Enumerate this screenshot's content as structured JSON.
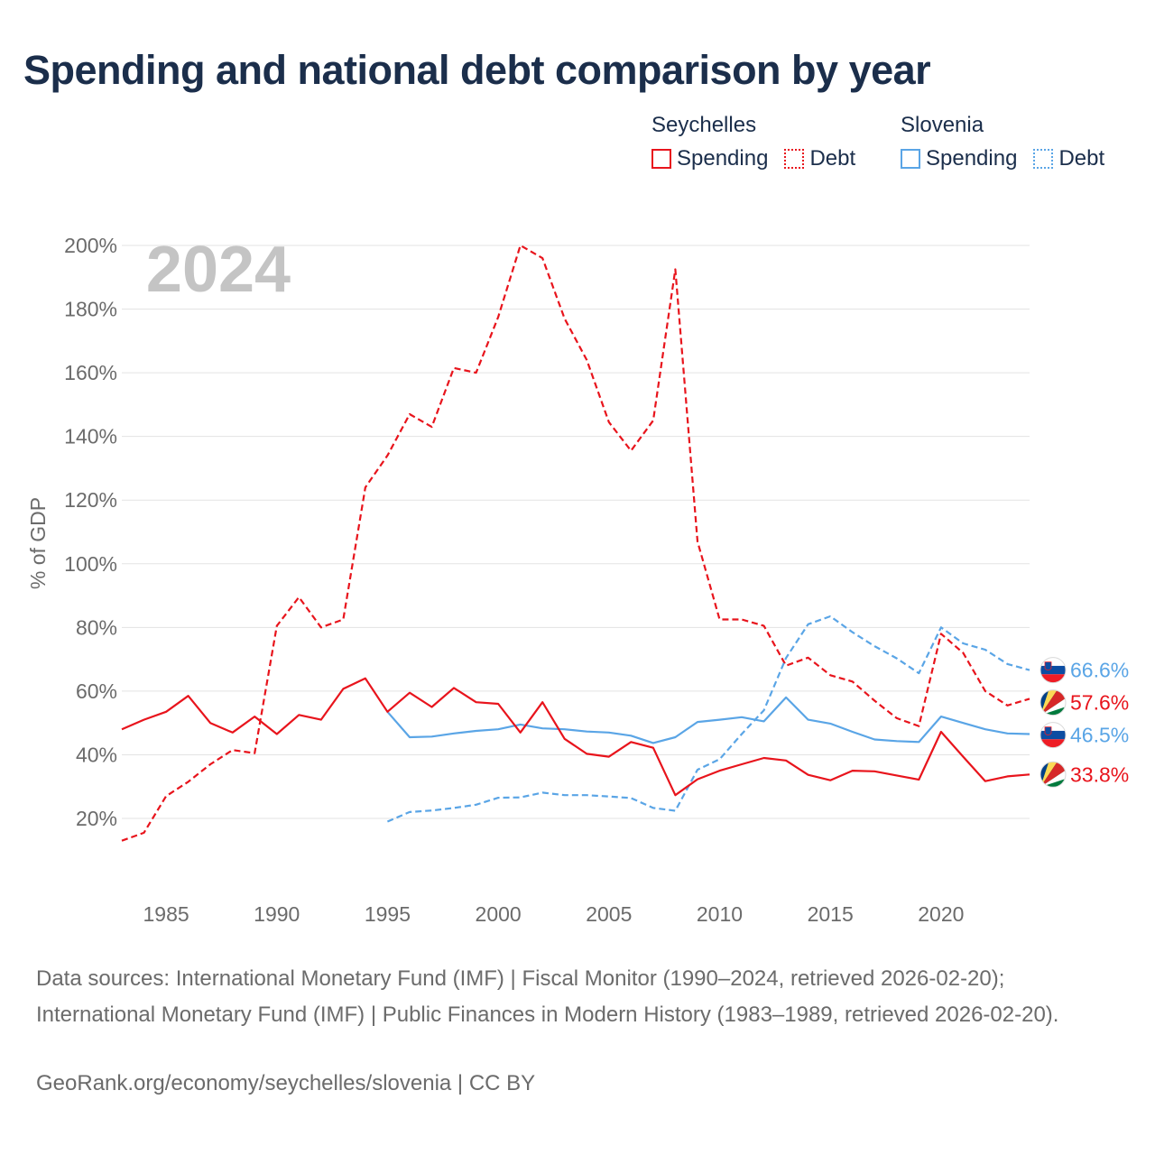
{
  "title": "Spending and national debt comparison by year",
  "legend": {
    "groups": [
      {
        "country": "Seychelles",
        "color": "#e8141c",
        "items": [
          {
            "label": "Spending",
            "style": "solid"
          },
          {
            "label": "Debt",
            "style": "dotted"
          }
        ]
      },
      {
        "country": "Slovenia",
        "color": "#5aa5e6",
        "items": [
          {
            "label": "Spending",
            "style": "solid"
          },
          {
            "label": "Debt",
            "style": "dotted"
          }
        ]
      }
    ]
  },
  "year_watermark": "2024",
  "chart_data": {
    "type": "line",
    "title": "Spending and national debt comparison by year",
    "xlabel": "",
    "ylabel": "% of GDP",
    "xlim": [
      1983,
      2024
    ],
    "ylim": [
      0,
      205
    ],
    "x_ticks": [
      1985,
      1990,
      1995,
      2000,
      2005,
      2010,
      2015,
      2020
    ],
    "y_ticks": [
      20,
      40,
      60,
      80,
      100,
      120,
      140,
      160,
      180,
      200
    ],
    "y_tick_labels": [
      "20%",
      "40%",
      "60%",
      "80%",
      "100%",
      "120%",
      "140%",
      "160%",
      "180%",
      "200%"
    ],
    "grid": true,
    "series": [
      {
        "name": "Seychelles Debt",
        "country": "Seychelles",
        "metric": "Debt",
        "color": "#e8141c",
        "dash": true,
        "x": [
          1983,
          1984,
          1985,
          1986,
          1987,
          1988,
          1989,
          1990,
          1991,
          1992,
          1993,
          1994,
          1995,
          1996,
          1997,
          1998,
          1999,
          2000,
          2001,
          2002,
          2003,
          2004,
          2005,
          2006,
          2007,
          2008,
          2009,
          2010,
          2011,
          2012,
          2013,
          2014,
          2015,
          2016,
          2017,
          2018,
          2019,
          2020,
          2021,
          2022,
          2023,
          2024
        ],
        "values": [
          13,
          15.5,
          27,
          31.5,
          37,
          41.5,
          40.5,
          80.5,
          89.5,
          80,
          82.5,
          124,
          134,
          147,
          143,
          161.5,
          160,
          177.5,
          200,
          196,
          177,
          164,
          144.5,
          135.5,
          145,
          192.5,
          107,
          82.5,
          82.5,
          80.5,
          68,
          70.5,
          65,
          63,
          57,
          51.5,
          49,
          78,
          72,
          60,
          55.5,
          57.6
        ],
        "end_label": "57.6%"
      },
      {
        "name": "Slovenia Debt",
        "country": "Slovenia",
        "metric": "Debt",
        "color": "#5aa5e6",
        "dash": true,
        "x": [
          1995,
          1996,
          1997,
          1998,
          1999,
          2000,
          2001,
          2002,
          2003,
          2004,
          2005,
          2006,
          2007,
          2008,
          2009,
          2010,
          2011,
          2012,
          2013,
          2014,
          2015,
          2016,
          2017,
          2018,
          2019,
          2020,
          2021,
          2022,
          2023,
          2024
        ],
        "values": [
          19,
          22,
          22.5,
          23.3,
          24.3,
          26.5,
          26.6,
          28.1,
          27.3,
          27.3,
          26.9,
          26.4,
          23.3,
          22.4,
          35.3,
          38.6,
          46.5,
          54,
          70.4,
          81,
          83.5,
          78.5,
          74.1,
          70.3,
          65.6,
          80,
          75,
          73,
          68.5,
          66.6
        ],
        "end_label": "66.6%"
      },
      {
        "name": "Slovenia Spending",
        "country": "Slovenia",
        "metric": "Spending",
        "color": "#5aa5e6",
        "dash": false,
        "x": [
          1995,
          1996,
          1997,
          1998,
          1999,
          2000,
          2001,
          2002,
          2003,
          2004,
          2005,
          2006,
          2007,
          2008,
          2009,
          2010,
          2011,
          2012,
          2013,
          2014,
          2015,
          2016,
          2017,
          2018,
          2019,
          2020,
          2021,
          2022,
          2023,
          2024
        ],
        "values": [
          53.5,
          45.5,
          45.7,
          46.7,
          47.5,
          48,
          49.5,
          48.3,
          48,
          47.3,
          47,
          46,
          43.7,
          45.5,
          50.3,
          51,
          51.8,
          50.5,
          58,
          51,
          49.8,
          47.2,
          44.8,
          44.3,
          44,
          52,
          50,
          48,
          46.7,
          46.5
        ],
        "end_label": "46.5%"
      },
      {
        "name": "Seychelles Spending",
        "country": "Seychelles",
        "metric": "Spending",
        "color": "#e8141c",
        "dash": false,
        "x": [
          1983,
          1984,
          1985,
          1986,
          1987,
          1988,
          1989,
          1990,
          1991,
          1992,
          1993,
          1994,
          1995,
          1996,
          1997,
          1998,
          1999,
          2000,
          2001,
          2002,
          2003,
          2004,
          2005,
          2006,
          2007,
          2008,
          2009,
          2010,
          2011,
          2012,
          2013,
          2014,
          2015,
          2016,
          2017,
          2018,
          2019,
          2020,
          2021,
          2022,
          2023,
          2024
        ],
        "values": [
          48,
          51,
          53.5,
          58.5,
          50,
          47,
          52,
          46.5,
          52.5,
          51,
          60.7,
          64,
          53.5,
          59.5,
          55,
          61,
          56.5,
          56,
          47,
          56.5,
          45,
          40.3,
          39.4,
          44,
          42.2,
          27.3,
          32.3,
          35,
          37,
          39,
          38.2,
          33.7,
          32,
          35,
          34.8,
          33.5,
          32.2,
          47.2,
          39.4,
          31.7,
          33.2,
          33.8
        ],
        "end_label": "33.8%"
      }
    ]
  },
  "sources": {
    "line1": "Data sources: International Monetary Fund (IMF) | Fiscal Monitor (1990–2024, retrieved 2026-02-20); International Monetary Fund (IMF) | Public Finances in Modern History (1983–1989, retrieved 2026-02-20).",
    "line2": "GeoRank.org/economy/seychelles/slovenia | CC BY"
  }
}
